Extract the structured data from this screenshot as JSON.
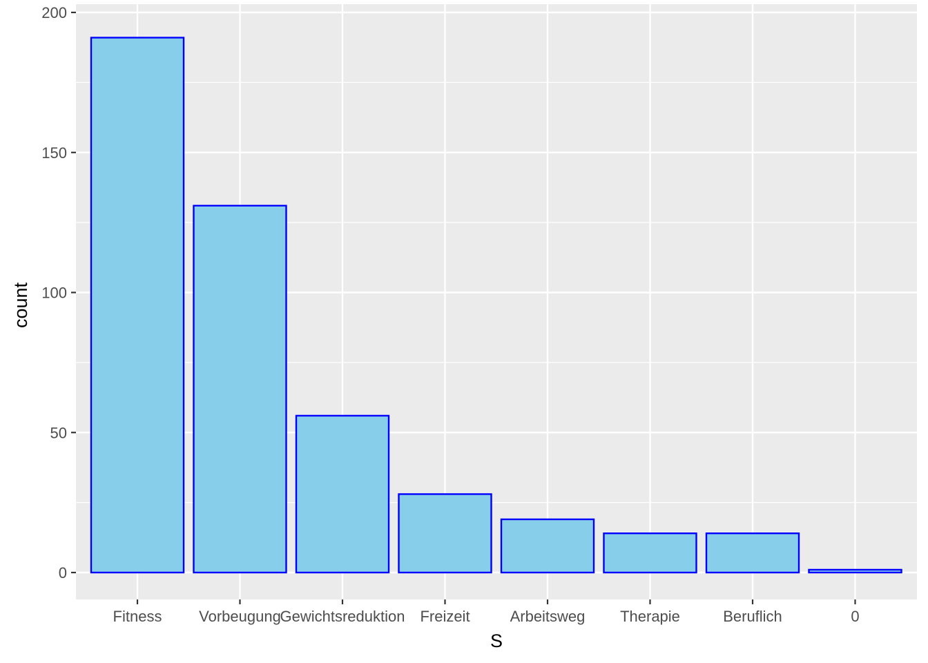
{
  "chart_data": {
    "type": "bar",
    "categories": [
      "Fitness",
      "Vorbeugung",
      "Gewichtsreduktion",
      "Freizeit",
      "Arbeitsweg",
      "Therapie",
      "Beruflich",
      "0"
    ],
    "values": [
      191,
      131,
      56,
      28,
      19,
      14,
      14,
      1
    ],
    "xlabel": "S",
    "ylabel": "count",
    "ylim": [
      0,
      200
    ],
    "yticks": [
      0,
      50,
      100,
      150,
      200
    ],
    "ytick_labels": [
      "0",
      "50",
      "100",
      "150",
      "200"
    ],
    "grid": true,
    "colors": {
      "panel": "#EBEBEB",
      "grid": "#FFFFFF",
      "bar_fill": "#87CEEB",
      "bar_outline": "#0000FF",
      "tick": "#333333"
    }
  }
}
